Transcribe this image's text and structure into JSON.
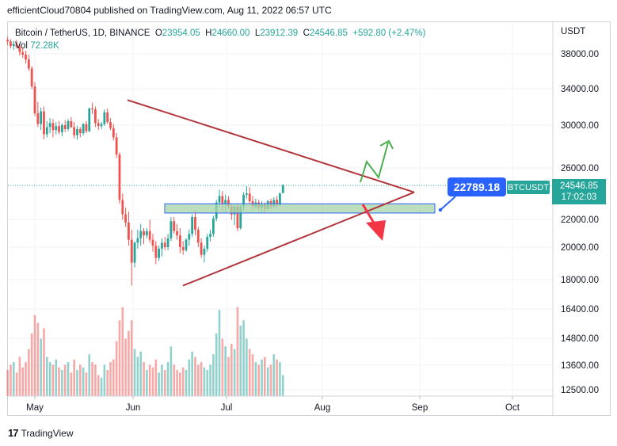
{
  "header": {
    "text": "efficientCloud70804 published on TradingView.com, Aug 11, 2022 06:57 UTC"
  },
  "legend": {
    "symbol": "Bitcoin / TetherUS, 1D, BINANCE",
    "o_label": "O",
    "o_value": "23954.05",
    "h_label": "H",
    "h_value": "24660.00",
    "l_label": "L",
    "l_value": "23912.39",
    "c_label": "C",
    "c_value": "24546.85",
    "change": "+592.80 (+2.47%)",
    "vol_label": "Vol",
    "vol_value": "72.28K"
  },
  "axis": {
    "currency": "USDT"
  },
  "price_tag": {
    "symbol": "BTCUSDT",
    "price": "24546.85",
    "countdown": "17:02:03"
  },
  "annotation": {
    "callout": "22789.18"
  },
  "footer": {
    "brand": "TradingView"
  },
  "colors": {
    "up": "#26a69a",
    "down": "#ef5350",
    "triangle": "#b2373d",
    "zone_fill": "#a5d6a7",
    "zone_border": "#2962ff",
    "arrow_up": "#4caf50",
    "arrow_down": "#f23645"
  },
  "chart_data": {
    "type": "candlestick",
    "x_ticks": [
      "May",
      "Jun",
      "Jul",
      "Aug",
      "Sep",
      "Oct"
    ],
    "y_ticks": [
      "38000.00",
      "34000.00",
      "30000.00",
      "26000.00",
      "22000.00",
      "20000.00",
      "18000.00",
      "16400.00",
      "14800.00",
      "13600.00",
      "12500.00"
    ],
    "y_scale": "log",
    "last_price": 24546.85,
    "annotations": {
      "triangle_upper": [
        [
          "2022-06-01",
          32600
        ],
        [
          "2022-08-31",
          24000
        ]
      ],
      "triangle_lower": [
        [
          "2022-06-17",
          17600
        ],
        [
          "2022-08-31",
          24000
        ]
      ],
      "support_zone": {
        "from": "2022-06-12",
        "to": "2022-09-03",
        "low": 22400,
        "high": 23100
      },
      "arrows": [
        "up",
        "down"
      ]
    },
    "series": [
      {
        "name": "Price",
        "ohlc": [
          [
            39800,
            40200,
            39100,
            39600
          ],
          [
            39600,
            39900,
            38700,
            39000
          ],
          [
            39000,
            39700,
            38500,
            39300
          ],
          [
            39300,
            39800,
            38700,
            38900
          ],
          [
            38900,
            39200,
            37800,
            38200
          ],
          [
            38200,
            38800,
            37500,
            37900
          ],
          [
            37900,
            38400,
            36800,
            37300
          ],
          [
            37300,
            37900,
            35900,
            36200
          ],
          [
            36200,
            36500,
            33800,
            34100
          ],
          [
            34100,
            34600,
            30900,
            31200
          ],
          [
            31200,
            32400,
            29800,
            30100
          ],
          [
            30100,
            31800,
            29500,
            31400
          ],
          [
            31400,
            31900,
            28600,
            29100
          ],
          [
            29100,
            30400,
            28800,
            29800
          ],
          [
            29800,
            30700,
            29200,
            30200
          ],
          [
            30200,
            30600,
            28800,
            29500
          ],
          [
            29500,
            30300,
            29100,
            29900
          ],
          [
            29900,
            30400,
            29100,
            29300
          ],
          [
            29300,
            30200,
            28900,
            30000
          ],
          [
            30000,
            30500,
            29300,
            29600
          ],
          [
            29600,
            30600,
            29400,
            30400
          ],
          [
            30400,
            30800,
            29700,
            29800
          ],
          [
            29800,
            30300,
            28700,
            29000
          ],
          [
            29000,
            29900,
            28600,
            29600
          ],
          [
            29600,
            29800,
            28800,
            29200
          ],
          [
            29200,
            30200,
            29000,
            30100
          ],
          [
            30100,
            30400,
            29200,
            29400
          ],
          [
            29400,
            31800,
            29300,
            31700
          ],
          [
            31700,
            32300,
            31100,
            31600
          ],
          [
            31600,
            31900,
            29800,
            30200
          ],
          [
            30200,
            30600,
            29500,
            29900
          ],
          [
            29900,
            30300,
            29600,
            30100
          ],
          [
            30100,
            31600,
            29900,
            31300
          ],
          [
            31300,
            31700,
            30100,
            30300
          ],
          [
            30300,
            30700,
            29500,
            29700
          ],
          [
            29700,
            30100,
            28500,
            28800
          ],
          [
            28800,
            29200,
            26900,
            27200
          ],
          [
            27200,
            27400,
            23100,
            23400
          ],
          [
            23400,
            23900,
            21900,
            22300
          ],
          [
            22300,
            22800,
            21400,
            21700
          ],
          [
            21700,
            22500,
            20100,
            20500
          ],
          [
            20500,
            21200,
            17600,
            19000
          ],
          [
            19000,
            20400,
            18700,
            20300
          ],
          [
            20300,
            21200,
            19900,
            20600
          ],
          [
            20600,
            21600,
            20100,
            21100
          ],
          [
            21100,
            21300,
            20200,
            20800
          ],
          [
            20800,
            21300,
            20600,
            21100
          ],
          [
            21100,
            21900,
            20300,
            20500
          ],
          [
            20500,
            20900,
            19700,
            20100
          ],
          [
            20100,
            20400,
            18900,
            19300
          ],
          [
            19300,
            20100,
            19100,
            19900
          ],
          [
            19900,
            20600,
            19400,
            20300
          ],
          [
            20300,
            20700,
            19800,
            20000
          ],
          [
            20000,
            20900,
            19800,
            20600
          ],
          [
            20600,
            22100,
            20400,
            21800
          ],
          [
            21800,
            22100,
            20900,
            21100
          ],
          [
            21100,
            21600,
            20500,
            20800
          ],
          [
            20800,
            21300,
            19600,
            20000
          ],
          [
            20000,
            20400,
            19500,
            19800
          ],
          [
            19800,
            20600,
            19700,
            20500
          ],
          [
            20500,
            21200,
            20100,
            20900
          ],
          [
            20900,
            22300,
            20700,
            22100
          ],
          [
            22100,
            22600,
            20800,
            21200
          ],
          [
            21200,
            21400,
            20000,
            20300
          ],
          [
            20300,
            20600,
            19300,
            19500
          ],
          [
            19500,
            20100,
            19000,
            19900
          ],
          [
            19900,
            20900,
            19700,
            20700
          ],
          [
            20700,
            21200,
            20400,
            20900
          ],
          [
            20900,
            22200,
            20700,
            22000
          ],
          [
            22000,
            23400,
            21800,
            23200
          ],
          [
            23200,
            24200,
            22800,
            23700
          ],
          [
            23700,
            24100,
            22600,
            23100
          ],
          [
            23100,
            23800,
            22500,
            23400
          ],
          [
            23400,
            23700,
            22700,
            22900
          ],
          [
            22900,
            23100,
            21900,
            22300
          ],
          [
            22300,
            23000,
            21500,
            22900
          ],
          [
            22900,
            23100,
            21100,
            21300
          ],
          [
            21300,
            23000,
            21200,
            22900
          ],
          [
            22900,
            24000,
            22600,
            23800
          ],
          [
            23800,
            24500,
            23500,
            23900
          ],
          [
            23900,
            24400,
            23100,
            23300
          ],
          [
            23300,
            23700,
            22600,
            22900
          ],
          [
            22900,
            23500,
            22700,
            23200
          ],
          [
            23200,
            23400,
            22600,
            22800
          ],
          [
            22800,
            23300,
            22500,
            23100
          ],
          [
            23100,
            23200,
            22400,
            22700
          ],
          [
            22700,
            23400,
            22600,
            23300
          ],
          [
            23300,
            23500,
            22700,
            22900
          ],
          [
            22900,
            23600,
            22800,
            23400
          ],
          [
            23400,
            23700,
            22800,
            23000
          ],
          [
            23000,
            24000,
            22900,
            23900
          ],
          [
            23954,
            24660,
            23912,
            24547
          ]
        ]
      }
    ],
    "volume": [
      0.1,
      0.12,
      0.13,
      0.09,
      0.15,
      0.11,
      0.13,
      0.18,
      0.24,
      0.31,
      0.28,
      0.22,
      0.26,
      0.15,
      0.13,
      0.12,
      0.14,
      0.11,
      0.1,
      0.12,
      0.13,
      0.09,
      0.14,
      0.1,
      0.12,
      0.11,
      0.09,
      0.16,
      0.13,
      0.12,
      0.08,
      0.07,
      0.12,
      0.1,
      0.13,
      0.14,
      0.21,
      0.29,
      0.34,
      0.22,
      0.25,
      0.29,
      0.18,
      0.15,
      0.17,
      0.13,
      0.1,
      0.12,
      0.11,
      0.14,
      0.09,
      0.12,
      0.1,
      0.13,
      0.19,
      0.12,
      0.1,
      0.09,
      0.11,
      0.1,
      0.14,
      0.17,
      0.15,
      0.12,
      0.13,
      0.11,
      0.1,
      0.12,
      0.16,
      0.24,
      0.33,
      0.22,
      0.19,
      0.15,
      0.2,
      0.18,
      0.34,
      0.27,
      0.29,
      0.22,
      0.18,
      0.16,
      0.13,
      0.12,
      0.14,
      0.15,
      0.11,
      0.12,
      0.16,
      0.14,
      0.13,
      0.08
    ]
  }
}
